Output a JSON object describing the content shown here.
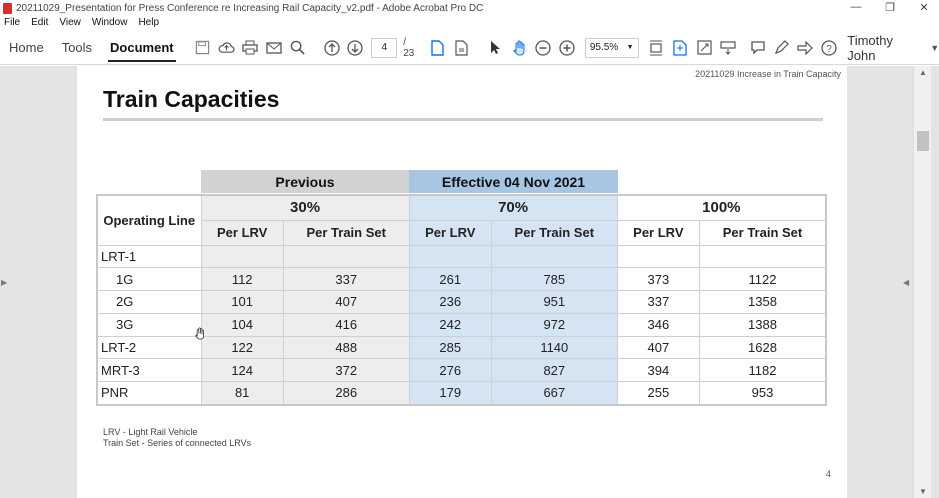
{
  "window": {
    "title": "20211029_Presentation for Press Conference re Increasing Rail Capacity_v2.pdf - Adobe Acrobat Pro DC",
    "controls": [
      "—",
      "❐",
      "✕"
    ]
  },
  "menu": [
    "File",
    "Edit",
    "View",
    "Window",
    "Help"
  ],
  "toolbar": {
    "tabs": [
      "Home",
      "Tools",
      "Document"
    ],
    "current_page": "4",
    "total_pages": "/ 23",
    "zoom": "95.5%",
    "user": "Timothy John"
  },
  "page": {
    "header_text": "20211029 Increase in Train Capacity",
    "title": "Train Capacities",
    "band_previous": "Previous",
    "band_effective": "Effective 04 Nov 2021",
    "op_line_header": "Operating Line",
    "pct_headers": [
      "30%",
      "70%",
      "100%"
    ],
    "sub_headers": [
      "Per LRV",
      "Per Train Set",
      "Per LRV",
      "Per Train Set",
      "Per LRV",
      "Per Train Set"
    ],
    "rows": [
      {
        "label": "LRT-1",
        "indent": false,
        "values": [
          "",
          "",
          "",
          "",
          "",
          ""
        ]
      },
      {
        "label": "1G",
        "indent": true,
        "values": [
          "112",
          "337",
          "261",
          "785",
          "373",
          "1122"
        ]
      },
      {
        "label": "2G",
        "indent": true,
        "values": [
          "101",
          "407",
          "236",
          "951",
          "337",
          "1358"
        ]
      },
      {
        "label": "3G",
        "indent": true,
        "values": [
          "104",
          "416",
          "242",
          "972",
          "346",
          "1388"
        ]
      },
      {
        "label": "LRT-2",
        "indent": false,
        "values": [
          "122",
          "488",
          "285",
          "1140",
          "407",
          "1628"
        ]
      },
      {
        "label": "MRT-3",
        "indent": false,
        "values": [
          "124",
          "372",
          "276",
          "827",
          "394",
          "1182"
        ]
      },
      {
        "label": "PNR",
        "indent": false,
        "values": [
          "81",
          "286",
          "179",
          "667",
          "255",
          "953"
        ]
      }
    ],
    "footnote_1": "LRV - Light Rail Vehicle",
    "footnote_2": "Train Set - Series of connected LRVs",
    "page_number": "4"
  }
}
